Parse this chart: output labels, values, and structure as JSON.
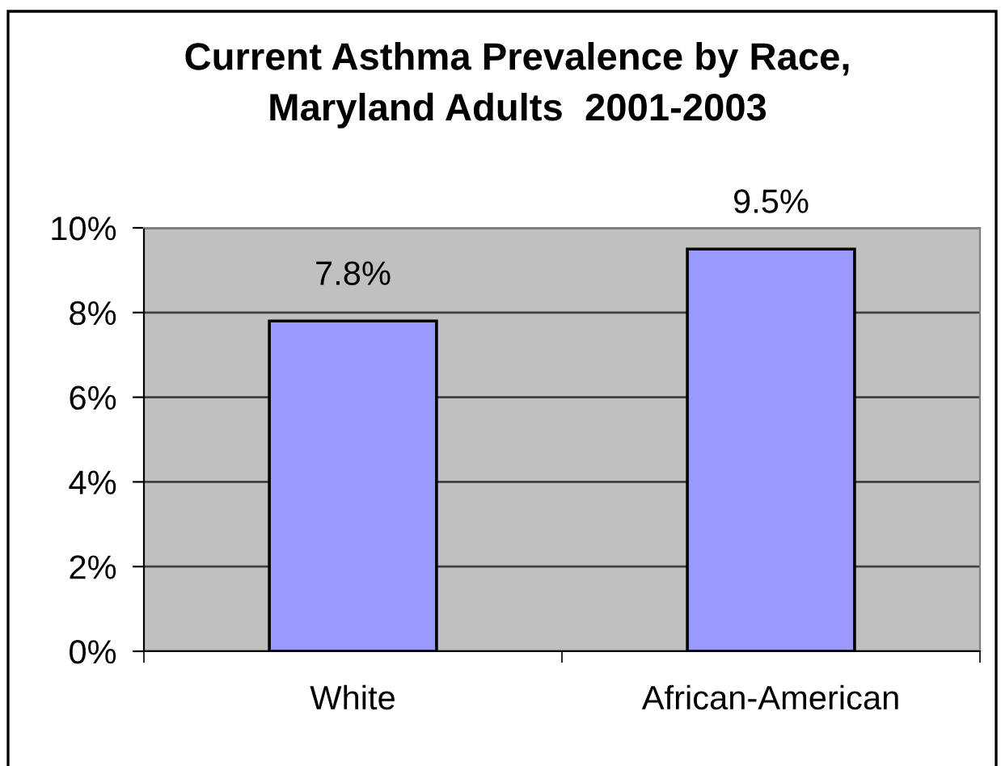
{
  "chart_data": {
    "type": "bar",
    "title": "Current Asthma Prevalence by Race,\nMaryland Adults  2001-2003",
    "categories": [
      "White",
      "African-American"
    ],
    "values": [
      7.8,
      9.5
    ],
    "color": "#9999ff",
    "value_labels": [
      "7.8%",
      "9.5%"
    ],
    "ylim": [
      0,
      10
    ],
    "yticks": [
      {
        "value": 0,
        "label": "0%"
      },
      {
        "value": 2,
        "label": "2%"
      },
      {
        "value": 4,
        "label": "4%"
      },
      {
        "value": 6,
        "label": "6%"
      },
      {
        "value": 8,
        "label": "8%"
      },
      {
        "value": 10,
        "label": "10%"
      }
    ],
    "grid": "y",
    "legend": false
  }
}
